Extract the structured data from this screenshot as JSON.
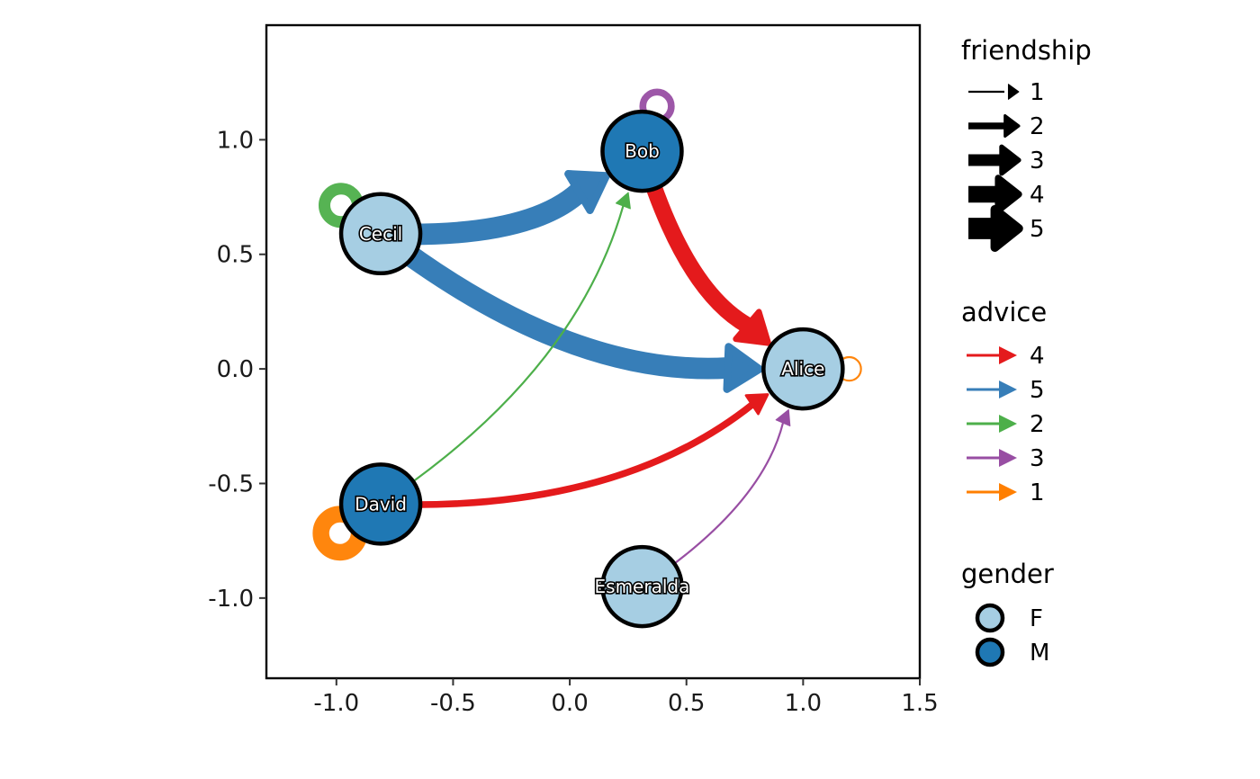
{
  "chart_data": {
    "type": "network",
    "xlim": [
      -1.3,
      1.5
    ],
    "ylim": [
      -1.35,
      1.5
    ],
    "x_ticks": [
      {
        "value": -1.0,
        "label": "-1.0"
      },
      {
        "value": -0.5,
        "label": "-0.5"
      },
      {
        "value": 0.0,
        "label": "0.0"
      },
      {
        "value": 0.5,
        "label": "0.5"
      },
      {
        "value": 1.0,
        "label": "1.0"
      },
      {
        "value": 1.5,
        "label": "1.5"
      }
    ],
    "y_ticks": [
      {
        "value": 1.0,
        "label": "1.0"
      },
      {
        "value": 0.5,
        "label": "0.5"
      },
      {
        "value": 0.0,
        "label": "0.0"
      },
      {
        "value": -0.5,
        "label": "-0.5"
      },
      {
        "value": -1.0,
        "label": "-1.0"
      }
    ],
    "grid": false,
    "nodes": [
      {
        "id": "Alice",
        "x": 1.0,
        "y": 0.0,
        "gender": "F"
      },
      {
        "id": "Bob",
        "x": 0.31,
        "y": 0.95,
        "gender": "M"
      },
      {
        "id": "Cecil",
        "x": -0.81,
        "y": 0.59,
        "gender": "F"
      },
      {
        "id": "David",
        "x": -0.81,
        "y": -0.59,
        "gender": "M"
      },
      {
        "id": "Esmeralda",
        "x": 0.31,
        "y": -0.95,
        "gender": "F"
      }
    ],
    "edges": [
      {
        "from": "Cecil",
        "to": "Bob",
        "friendship": 5,
        "advice": 5
      },
      {
        "from": "Cecil",
        "to": "Alice",
        "friendship": 5,
        "advice": 5
      },
      {
        "from": "Bob",
        "to": "Alice",
        "friendship": 4,
        "advice": 4
      },
      {
        "from": "David",
        "to": "Alice",
        "friendship": 2,
        "advice": 4
      },
      {
        "from": "David",
        "to": "Bob",
        "friendship": 1,
        "advice": 2
      },
      {
        "from": "Esmeralda",
        "to": "Alice",
        "friendship": 1,
        "advice": 3
      },
      {
        "from": "Bob",
        "to": "Bob",
        "friendship": 2,
        "advice": 3
      },
      {
        "from": "Cecil",
        "to": "Cecil",
        "friendship": 3,
        "advice": 2
      },
      {
        "from": "David",
        "to": "David",
        "friendship": 4,
        "advice": 1
      },
      {
        "from": "Alice",
        "to": "Alice",
        "friendship": 1,
        "advice": 1
      }
    ],
    "legend": {
      "placement": "right",
      "friendship": {
        "title": "friendship",
        "items": [
          {
            "label": "1",
            "value": 1
          },
          {
            "label": "2",
            "value": 2
          },
          {
            "label": "3",
            "value": 3
          },
          {
            "label": "4",
            "value": 4
          },
          {
            "label": "5",
            "value": 5
          }
        ]
      },
      "advice": {
        "title": "advice",
        "items": [
          {
            "label": "4",
            "color": "#e41a1c"
          },
          {
            "label": "5",
            "color": "#377eb8"
          },
          {
            "label": "2",
            "color": "#4daf4a"
          },
          {
            "label": "3",
            "color": "#984ea3"
          },
          {
            "label": "1",
            "color": "#ff7f00"
          }
        ]
      },
      "gender": {
        "title": "gender",
        "items": [
          {
            "label": "F",
            "color": "#a6cee3"
          },
          {
            "label": "M",
            "color": "#1f78b4"
          }
        ]
      }
    }
  }
}
